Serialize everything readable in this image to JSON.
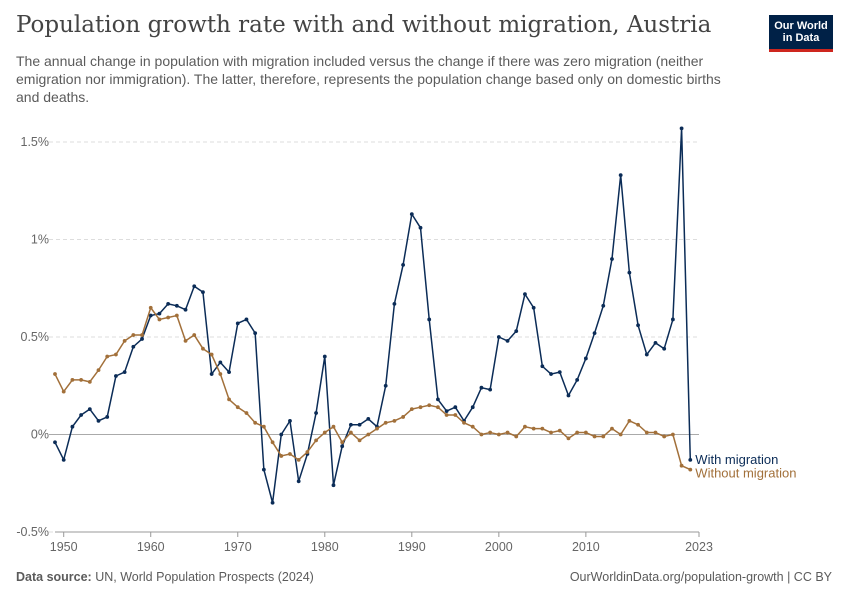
{
  "header": {
    "title": "Population growth rate with and without migration, Austria",
    "subtitle": "The annual change in population with migration included versus the change if there was zero migration (neither emigration nor immigration). The latter, therefore, represents the population change based only on domestic births and deaths."
  },
  "logo": {
    "line1": "Our World",
    "line2": "in Data"
  },
  "footer": {
    "source_label": "Data source:",
    "source_text": "UN, World Population Prospects (2024)",
    "right": "OurWorldinData.org/population-growth | CC BY"
  },
  "colors": {
    "with_migration": "#0b2c57",
    "without_migration": "#a2703a",
    "grid": "#dddddd",
    "zero_line": "#aaaaaa"
  },
  "chart_data": {
    "type": "line",
    "title": "Population growth rate with and without migration, Austria",
    "xlim": [
      1950,
      2023
    ],
    "ylim": [
      -0.5,
      1.5
    ],
    "y_ticks": [
      {
        "value": 1.5,
        "label": "1.5%"
      },
      {
        "value": 1,
        "label": "1%"
      },
      {
        "value": 0.5,
        "label": "0.5%"
      },
      {
        "value": 0,
        "label": "0%"
      },
      {
        "value": -0.5,
        "label": "-0.5%"
      }
    ],
    "x_ticks": [
      {
        "value": 1950,
        "label": "1950"
      },
      {
        "value": 1960,
        "label": "1960"
      },
      {
        "value": 1970,
        "label": "1970"
      },
      {
        "value": 1980,
        "label": "1980"
      },
      {
        "value": 1990,
        "label": "1990"
      },
      {
        "value": 2000,
        "label": "2000"
      },
      {
        "value": 2010,
        "label": "2010"
      },
      {
        "value": 2023,
        "label": "2023"
      }
    ],
    "grid": true,
    "x_start": 1949,
    "series": [
      {
        "name": "With migration",
        "color": "#0b2c57",
        "values": [
          -0.04,
          -0.13,
          0.04,
          0.1,
          0.13,
          0.07,
          0.09,
          0.3,
          0.32,
          0.45,
          0.49,
          0.61,
          0.62,
          0.67,
          0.66,
          0.64,
          0.76,
          0.73,
          0.31,
          0.37,
          0.32,
          0.57,
          0.59,
          0.52,
          -0.18,
          -0.35,
          0.0,
          0.07,
          -0.24,
          -0.1,
          0.11,
          0.4,
          -0.26,
          -0.06,
          0.05,
          0.05,
          0.08,
          0.04,
          0.25,
          0.67,
          0.87,
          1.13,
          1.06,
          0.59,
          0.18,
          0.12,
          0.14,
          0.07,
          0.14,
          0.24,
          0.23,
          0.5,
          0.48,
          0.53,
          0.72,
          0.65,
          0.35,
          0.31,
          0.32,
          0.2,
          0.28,
          0.39,
          0.52,
          0.66,
          0.9,
          1.33,
          0.83,
          0.56,
          0.41,
          0.47,
          0.44,
          0.59,
          1.57,
          -0.13
        ]
      },
      {
        "name": "Without migration",
        "color": "#a2703a",
        "values": [
          0.31,
          0.22,
          0.28,
          0.28,
          0.27,
          0.33,
          0.4,
          0.41,
          0.48,
          0.51,
          0.51,
          0.65,
          0.59,
          0.6,
          0.61,
          0.48,
          0.51,
          0.44,
          0.41,
          0.31,
          0.18,
          0.14,
          0.11,
          0.06,
          0.04,
          -0.04,
          -0.11,
          -0.1,
          -0.13,
          -0.09,
          -0.03,
          0.01,
          0.04,
          -0.04,
          0.01,
          -0.03,
          0.0,
          0.03,
          0.06,
          0.07,
          0.09,
          0.13,
          0.14,
          0.15,
          0.14,
          0.1,
          0.1,
          0.06,
          0.04,
          0.0,
          0.01,
          0.0,
          0.01,
          -0.01,
          0.04,
          0.03,
          0.03,
          0.01,
          0.02,
          -0.02,
          0.01,
          0.01,
          -0.01,
          -0.01,
          0.03,
          0.0,
          0.07,
          0.05,
          0.01,
          0.01,
          -0.01,
          0.0,
          -0.16,
          -0.18
        ]
      }
    ]
  }
}
